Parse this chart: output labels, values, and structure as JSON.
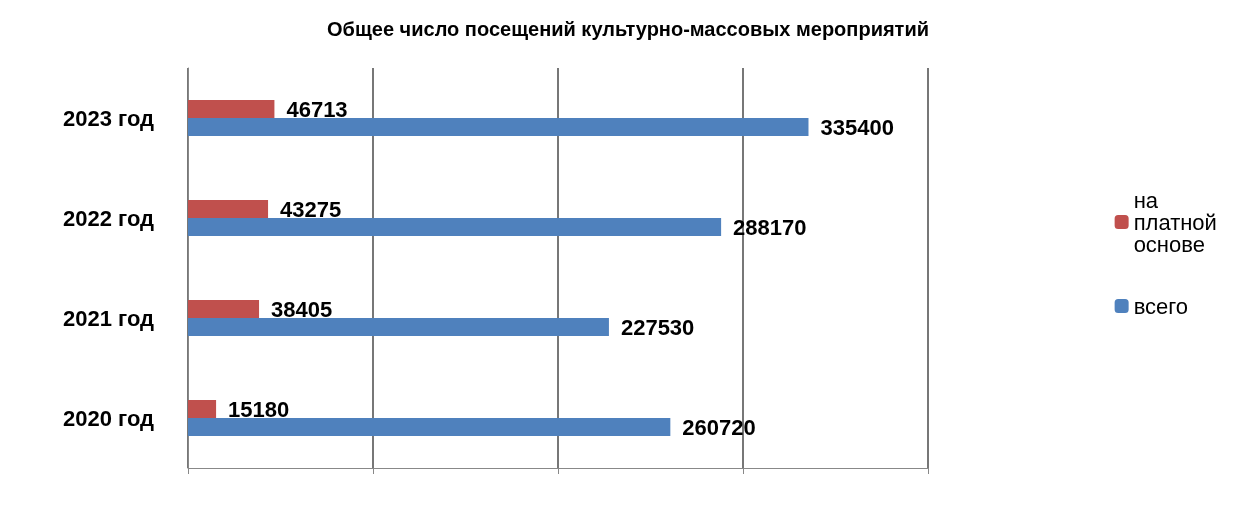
{
  "chart_data": {
    "type": "bar",
    "orientation": "horizontal",
    "title": "Общее число посещений культурно-массовых мероприятий",
    "categories": [
      "2023 год",
      "2022 год",
      "2021 год",
      "2020 год"
    ],
    "series": [
      {
        "name": "на платной основе",
        "color": "#c0504d",
        "values": [
          46713,
          43275,
          38405,
          15180
        ]
      },
      {
        "name": "всего",
        "color": "#4f81bd",
        "values": [
          335400,
          288170,
          227530,
          260720
        ]
      }
    ],
    "xlim": [
      0,
      400000
    ],
    "xticks": [
      {
        "value": 0,
        "label": null
      },
      {
        "value": 100000,
        "label": null
      },
      {
        "value": 200000,
        "label": null
      },
      {
        "value": 300000,
        "label": null
      },
      {
        "value": 400000,
        "label": null
      }
    ],
    "tick_labels": "y",
    "grid": "x",
    "legend": "right",
    "data_labels": true
  }
}
